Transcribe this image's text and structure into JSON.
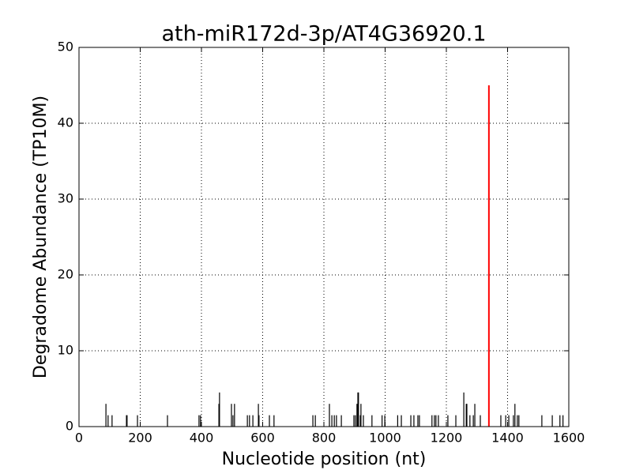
{
  "chart_data": {
    "type": "stem",
    "title": "ath-miR172d-3p/AT4G36920.1",
    "xlabel": "Nucleotide position (nt)",
    "ylabel": "Degradome Abundance (TP10M)",
    "xlim": [
      0,
      1600
    ],
    "xticks": [
      0,
      200,
      400,
      600,
      800,
      1000,
      1200,
      1400,
      1600
    ],
    "ylim": [
      0,
      50
    ],
    "yticks": [
      0,
      10,
      20,
      30,
      40,
      50
    ],
    "grid": true,
    "series": [
      {
        "color": "#000000",
        "x": [
          88,
          95,
          108,
          155,
          157,
          191,
          289,
          392,
          397,
          457,
          459,
          498,
          503,
          508,
          550,
          557,
          568,
          586,
          588,
          622,
          637,
          764,
          772,
          818,
          826,
          834,
          841,
          857,
          898,
          903,
          908,
          911,
          913,
          919,
          921,
          929,
          957,
          990,
          999,
          1041,
          1053,
          1084,
          1094,
          1107,
          1112,
          1153,
          1161,
          1166,
          1174,
          1205,
          1231,
          1257,
          1265,
          1267,
          1277,
          1288,
          1293,
          1311,
          1378,
          1394,
          1404,
          1419,
          1424,
          1432,
          1437,
          1512,
          1546,
          1571,
          1581
        ],
        "values": [
          3,
          1.5,
          1.5,
          1.5,
          1.5,
          1.5,
          1.5,
          1.5,
          1.5,
          3,
          4.5,
          3,
          1.5,
          3,
          1.5,
          1.5,
          1.5,
          3,
          1.5,
          1.5,
          1.5,
          1.5,
          1.5,
          3,
          1.5,
          1.5,
          1.5,
          1.5,
          1.5,
          1.5,
          3,
          4.5,
          4.5,
          1.5,
          3,
          1.5,
          1.5,
          1.5,
          1.5,
          1.5,
          1.5,
          1.5,
          1.5,
          1.5,
          1.5,
          1.5,
          1.5,
          1.5,
          1.5,
          1.5,
          1.5,
          4.5,
          3,
          3,
          1.5,
          1.5,
          3,
          1.5,
          1.5,
          1.5,
          1.5,
          1.5,
          3,
          1.5,
          1.5,
          1.5,
          1.5,
          1.5,
          1.5
        ]
      },
      {
        "color": "#ff0000",
        "x": [
          1339
        ],
        "values": [
          45
        ]
      }
    ]
  }
}
